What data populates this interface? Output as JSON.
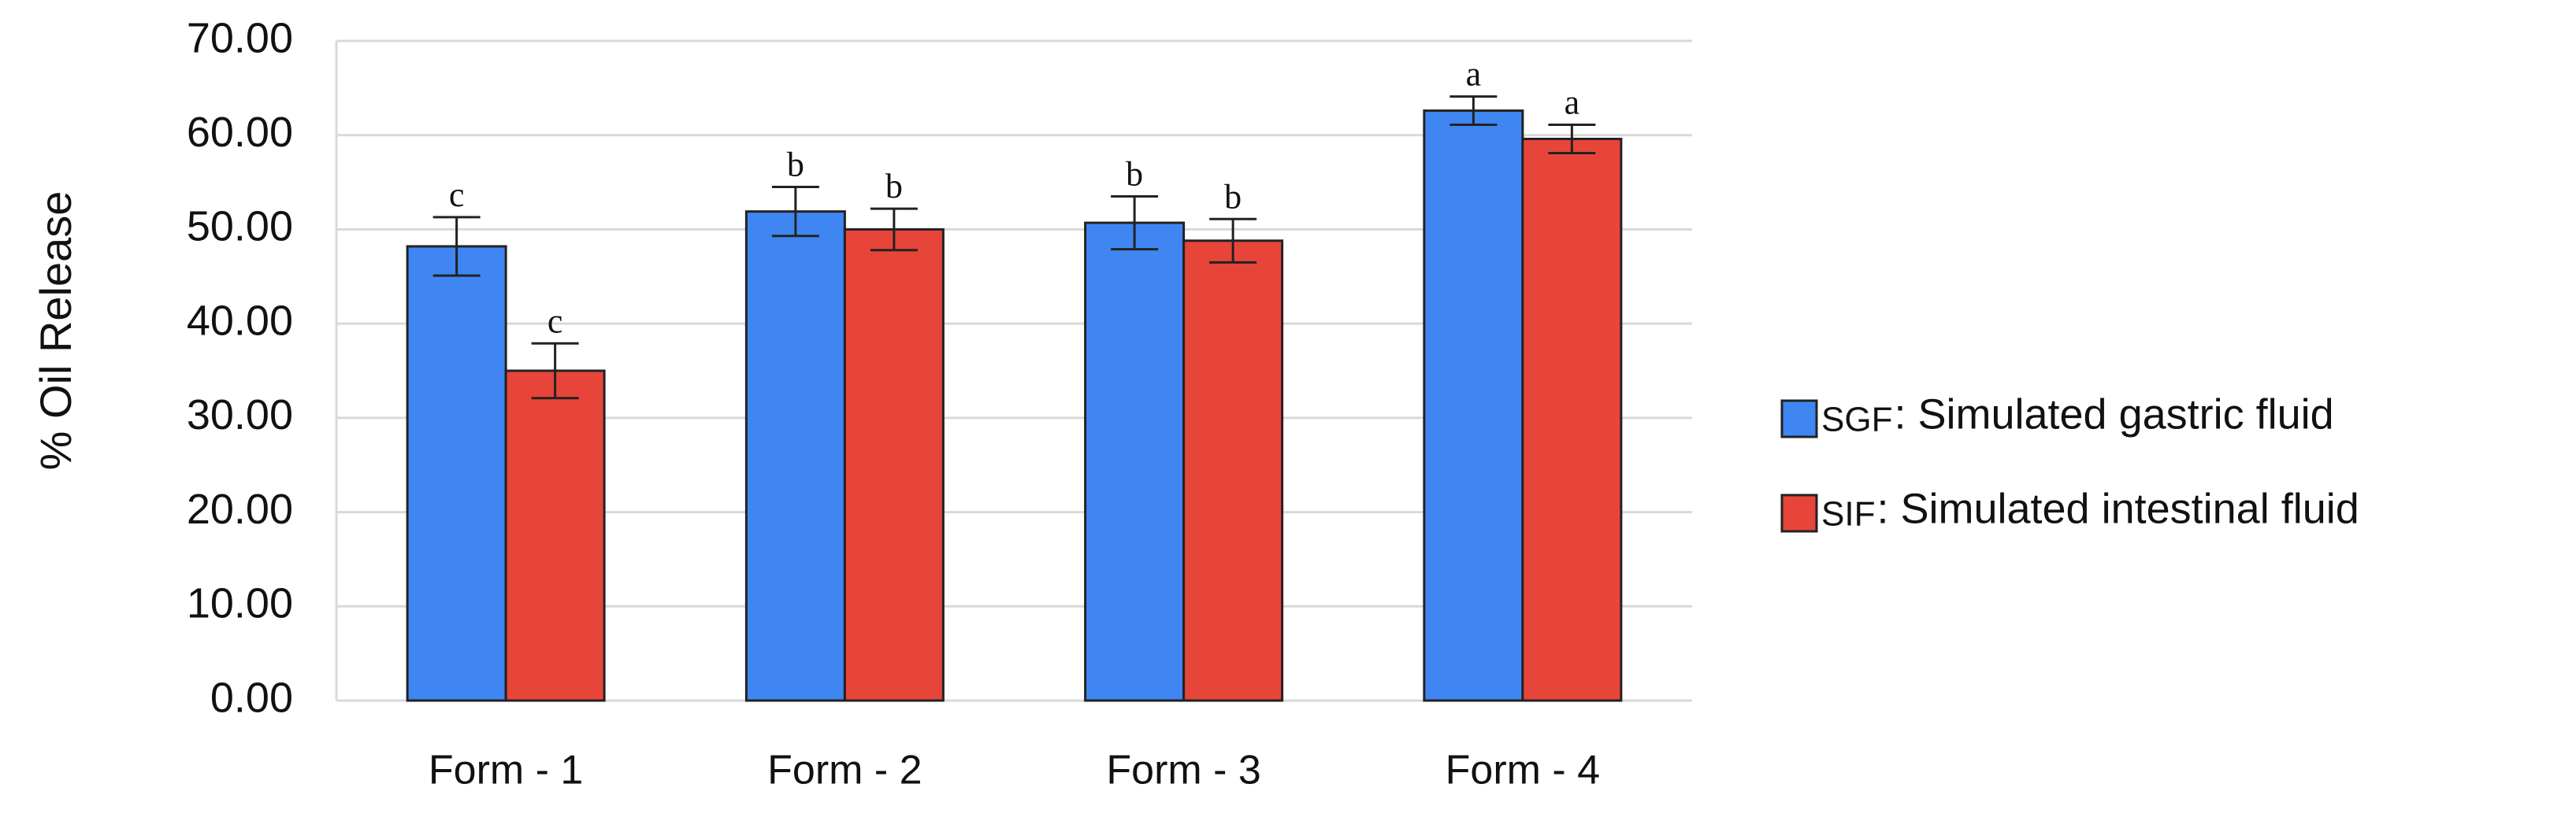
{
  "chart_data": {
    "type": "bar",
    "y_label": "% Oil Release",
    "categories": [
      "Form - 1",
      "Form - 2",
      "Form - 3",
      "Form - 4"
    ],
    "series": [
      {
        "name": "SGF",
        "description": ": Simulated gastric fluid",
        "color": "#3f86f2",
        "values": [
          48.2,
          51.9,
          50.7,
          62.6
        ],
        "errors": [
          3.1,
          2.6,
          2.8,
          1.5
        ],
        "letters": [
          "c",
          "b",
          "b",
          "a"
        ]
      },
      {
        "name": "SIF",
        "description": " : Simulated intestinal fluid",
        "color": "#e8453a",
        "values": [
          35.0,
          50.0,
          48.8,
          59.6
        ],
        "errors": [
          2.9,
          2.2,
          2.3,
          1.5
        ],
        "letters": [
          "c",
          "b",
          "b",
          "a"
        ]
      }
    ],
    "ylim": [
      0,
      70
    ],
    "yticks": [
      {
        "value": 0,
        "label": "0.00"
      },
      {
        "value": 10,
        "label": "10.00"
      },
      {
        "value": 20,
        "label": "20.00"
      },
      {
        "value": 30,
        "label": "30.00"
      },
      {
        "value": 40,
        "label": "40.00"
      },
      {
        "value": 50,
        "label": "50.00"
      },
      {
        "value": 60,
        "label": "60.00"
      },
      {
        "value": 70,
        "label": "70.00"
      }
    ],
    "grid": true
  }
}
